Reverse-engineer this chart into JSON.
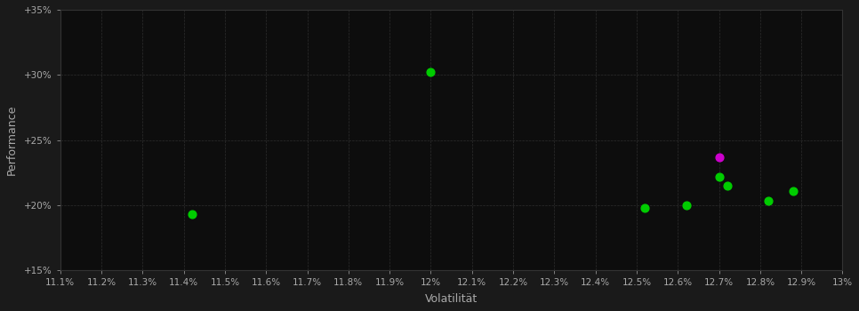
{
  "background_color": "#1a1a1a",
  "plot_bg_color": "#0d0d0d",
  "grid_color": "#2e2e2e",
  "xlabel": "Volatilität",
  "ylabel": "Performance",
  "xlim": [
    0.111,
    0.13
  ],
  "ylim": [
    0.15,
    0.35
  ],
  "xticks": [
    0.111,
    0.112,
    0.113,
    0.114,
    0.115,
    0.116,
    0.117,
    0.118,
    0.119,
    0.12,
    0.121,
    0.122,
    0.123,
    0.124,
    0.125,
    0.126,
    0.127,
    0.128,
    0.129,
    0.13
  ],
  "yticks": [
    0.15,
    0.2,
    0.25,
    0.3,
    0.35
  ],
  "ytick_labels": [
    "+15%",
    "+20%",
    "+25%",
    "+30%",
    "+35%"
  ],
  "xtick_labels": [
    "11.1%",
    "11.2%",
    "11.3%",
    "11.4%",
    "11.5%",
    "11.6%",
    "11.7%",
    "11.8%",
    "11.9%",
    "12%",
    "12.1%",
    "12.2%",
    "12.3%",
    "12.4%",
    "12.5%",
    "12.6%",
    "12.7%",
    "12.8%",
    "12.9%",
    "13%"
  ],
  "green_points": [
    [
      0.1142,
      0.193
    ],
    [
      0.12,
      0.302
    ],
    [
      0.1252,
      0.198
    ],
    [
      0.1262,
      0.2
    ],
    [
      0.127,
      0.222
    ],
    [
      0.1272,
      0.215
    ],
    [
      0.1282,
      0.203
    ],
    [
      0.1288,
      0.211
    ]
  ],
  "magenta_points": [
    [
      0.127,
      0.237
    ]
  ],
  "dot_size": 40,
  "green_color": "#00cc00",
  "magenta_color": "#cc00cc",
  "tick_color": "#aaaaaa",
  "tick_fontsize": 7.5,
  "label_fontsize": 9,
  "label_color": "#aaaaaa",
  "spine_color": "#333333"
}
